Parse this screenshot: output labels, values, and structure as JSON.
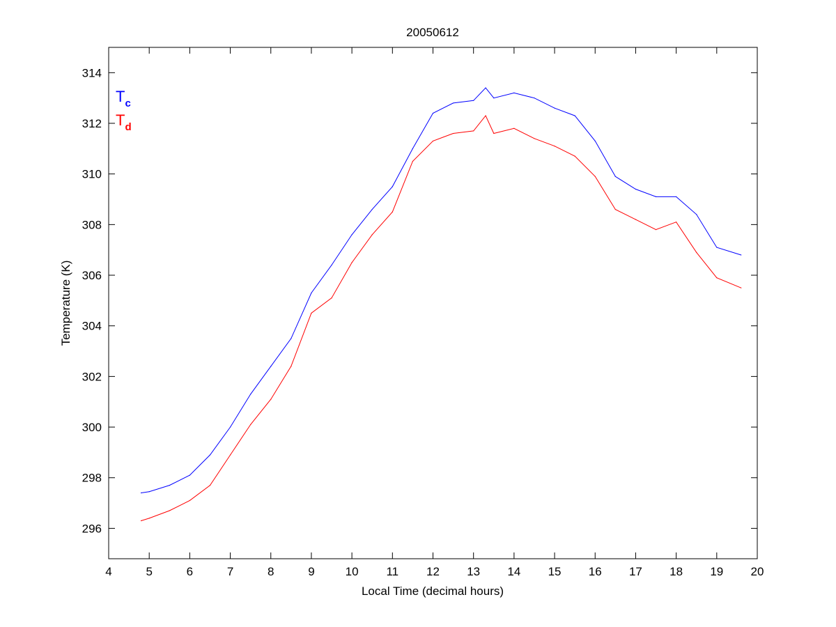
{
  "chart_data": {
    "type": "line",
    "title": "20050612",
    "xlabel": "Local Time (decimal hours)",
    "ylabel": "Temperature (K)",
    "xlim": [
      4,
      20
    ],
    "ylim": [
      294.8,
      315
    ],
    "xticks": [
      4,
      5,
      6,
      7,
      8,
      9,
      10,
      11,
      12,
      13,
      14,
      15,
      16,
      17,
      18,
      19,
      20
    ],
    "yticks": [
      296,
      298,
      300,
      302,
      304,
      306,
      308,
      310,
      312,
      314
    ],
    "grid": false,
    "legend": {
      "placement": "top-left",
      "entries": [
        {
          "base": "T",
          "sub": "c",
          "color": "#0000ff"
        },
        {
          "base": "T",
          "sub": "d",
          "color": "#ff0000"
        }
      ]
    },
    "x": [
      4.8,
      5.0,
      5.5,
      6.0,
      6.5,
      7.0,
      7.5,
      8.0,
      8.5,
      9.0,
      9.5,
      10.0,
      10.5,
      11.0,
      11.5,
      12.0,
      12.5,
      13.0,
      13.3,
      13.5,
      14.0,
      14.5,
      15.0,
      15.5,
      16.0,
      16.5,
      17.0,
      17.5,
      18.0,
      18.5,
      19.0,
      19.6
    ],
    "series": [
      {
        "name": "Tc",
        "color": "#0000ff",
        "values": [
          297.4,
          297.45,
          297.7,
          298.1,
          298.9,
          300.0,
          301.3,
          302.4,
          303.5,
          305.3,
          306.4,
          307.6,
          308.6,
          309.5,
          311.0,
          312.4,
          312.8,
          312.9,
          313.4,
          313.0,
          313.2,
          313.0,
          312.6,
          312.3,
          311.3,
          309.9,
          309.4,
          309.1,
          309.1,
          308.4,
          307.1,
          306.8
        ]
      },
      {
        "name": "Td",
        "color": "#ff0000",
        "values": [
          296.3,
          296.4,
          296.7,
          297.1,
          297.7,
          298.9,
          300.1,
          301.1,
          302.4,
          304.5,
          305.1,
          306.5,
          307.6,
          308.5,
          310.5,
          311.3,
          311.6,
          311.7,
          312.3,
          311.6,
          311.8,
          311.4,
          311.1,
          310.7,
          309.9,
          308.6,
          308.2,
          307.8,
          308.1,
          306.9,
          305.9,
          305.5
        ]
      }
    ]
  }
}
